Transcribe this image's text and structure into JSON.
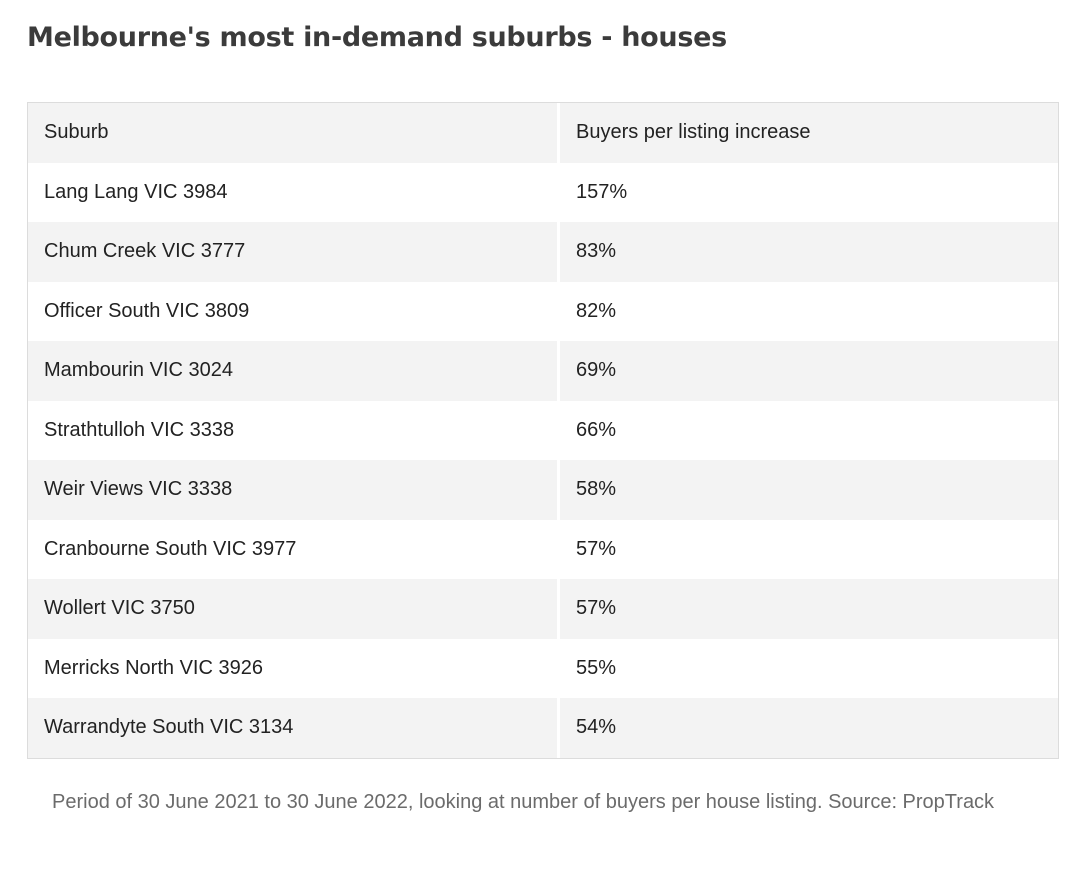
{
  "title": "Melbourne's most in-demand suburbs - houses",
  "table": {
    "headers": [
      "Suburb",
      "Buyers per listing increase"
    ],
    "rows": [
      [
        "Lang Lang VIC 3984",
        "157%"
      ],
      [
        "Chum Creek VIC 3777",
        "83%"
      ],
      [
        "Officer South VIC 3809",
        "82%"
      ],
      [
        "Mambourin VIC 3024",
        "69%"
      ],
      [
        "Strathtulloh VIC 3338",
        "66%"
      ],
      [
        "Weir Views VIC 3338",
        "58%"
      ],
      [
        "Cranbourne South VIC 3977",
        "57%"
      ],
      [
        "Wollert VIC 3750",
        "57%"
      ],
      [
        "Merricks North VIC 3926",
        "55%"
      ],
      [
        "Warrandyte South VIC 3134",
        "54%"
      ]
    ]
  },
  "caption": "Period of 30 June 2021 to 30 June 2022, looking at number of buyers per house listing. Source: PropTrack"
}
